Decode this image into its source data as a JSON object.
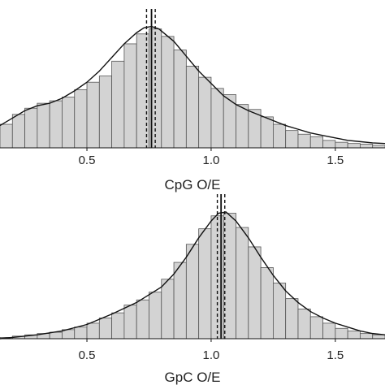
{
  "colors": {
    "bar_fill": "#d3d3d3",
    "bar_stroke": "#555555",
    "density": "#111111",
    "axis": "#111111"
  },
  "chart_data": [
    {
      "type": "bar",
      "xlabel": "CpG O/E",
      "ylabel": "",
      "xlim": [
        0.15,
        1.7
      ],
      "ylim": [
        0,
        1.03
      ],
      "x_ticks": [
        0.5,
        1.0,
        1.5
      ],
      "x_tick_labels": [
        "0.5",
        "1.0",
        "1.5"
      ],
      "bin_width": 0.05,
      "bins": [
        {
          "x": 0.175,
          "y": 0.19
        },
        {
          "x": 0.225,
          "y": 0.27
        },
        {
          "x": 0.275,
          "y": 0.32
        },
        {
          "x": 0.325,
          "y": 0.36
        },
        {
          "x": 0.375,
          "y": 0.38
        },
        {
          "x": 0.425,
          "y": 0.41
        },
        {
          "x": 0.475,
          "y": 0.47
        },
        {
          "x": 0.525,
          "y": 0.53
        },
        {
          "x": 0.575,
          "y": 0.58
        },
        {
          "x": 0.625,
          "y": 0.7
        },
        {
          "x": 0.675,
          "y": 0.84
        },
        {
          "x": 0.725,
          "y": 0.92
        },
        {
          "x": 0.775,
          "y": 0.96
        },
        {
          "x": 0.825,
          "y": 0.9
        },
        {
          "x": 0.875,
          "y": 0.79
        },
        {
          "x": 0.925,
          "y": 0.66
        },
        {
          "x": 0.975,
          "y": 0.57
        },
        {
          "x": 1.025,
          "y": 0.48
        },
        {
          "x": 1.075,
          "y": 0.43
        },
        {
          "x": 1.125,
          "y": 0.35
        },
        {
          "x": 1.175,
          "y": 0.31
        },
        {
          "x": 1.225,
          "y": 0.25
        },
        {
          "x": 1.275,
          "y": 0.19
        },
        {
          "x": 1.325,
          "y": 0.14
        },
        {
          "x": 1.375,
          "y": 0.11
        },
        {
          "x": 1.425,
          "y": 0.09
        },
        {
          "x": 1.475,
          "y": 0.06
        },
        {
          "x": 1.525,
          "y": 0.045
        },
        {
          "x": 1.575,
          "y": 0.035
        },
        {
          "x": 1.625,
          "y": 0.03
        },
        {
          "x": 1.675,
          "y": 0.02
        }
      ],
      "density_line": {
        "x": [
          0.15,
          0.2,
          0.25,
          0.3,
          0.35,
          0.4,
          0.45,
          0.5,
          0.55,
          0.6,
          0.65,
          0.7,
          0.73,
          0.76,
          0.79,
          0.85,
          0.9,
          0.95,
          1.0,
          1.05,
          1.1,
          1.15,
          1.2,
          1.25,
          1.3,
          1.35,
          1.4,
          1.45,
          1.5,
          1.55,
          1.6,
          1.65,
          1.7
        ],
        "y": [
          0.18,
          0.24,
          0.3,
          0.34,
          0.36,
          0.4,
          0.46,
          0.53,
          0.62,
          0.73,
          0.84,
          0.93,
          0.97,
          0.98,
          0.96,
          0.86,
          0.74,
          0.62,
          0.52,
          0.42,
          0.35,
          0.3,
          0.26,
          0.22,
          0.18,
          0.15,
          0.12,
          0.1,
          0.08,
          0.06,
          0.05,
          0.04,
          0.035
        ]
      },
      "vlines": [
        {
          "x": 0.74,
          "style": "dashed"
        },
        {
          "x": 0.76,
          "style": "solid"
        },
        {
          "x": 0.775,
          "style": "dashed"
        }
      ]
    },
    {
      "type": "bar",
      "xlabel": "GpC O/E",
      "ylabel": "",
      "xlim": [
        0.15,
        1.7
      ],
      "ylim": [
        0,
        1.03
      ],
      "x_ticks": [
        0.5,
        1.0,
        1.5
      ],
      "x_tick_labels": [
        "0.5",
        "1.0",
        "1.5"
      ],
      "bin_width": 0.05,
      "bins": [
        {
          "x": 0.175,
          "y": 0.01
        },
        {
          "x": 0.225,
          "y": 0.02
        },
        {
          "x": 0.275,
          "y": 0.03
        },
        {
          "x": 0.325,
          "y": 0.04
        },
        {
          "x": 0.375,
          "y": 0.05
        },
        {
          "x": 0.425,
          "y": 0.07
        },
        {
          "x": 0.475,
          "y": 0.09
        },
        {
          "x": 0.525,
          "y": 0.12
        },
        {
          "x": 0.575,
          "y": 0.16
        },
        {
          "x": 0.625,
          "y": 0.2
        },
        {
          "x": 0.675,
          "y": 0.26
        },
        {
          "x": 0.725,
          "y": 0.3
        },
        {
          "x": 0.775,
          "y": 0.36
        },
        {
          "x": 0.825,
          "y": 0.46
        },
        {
          "x": 0.875,
          "y": 0.59
        },
        {
          "x": 0.925,
          "y": 0.73
        },
        {
          "x": 0.975,
          "y": 0.85
        },
        {
          "x": 1.025,
          "y": 0.95
        },
        {
          "x": 1.075,
          "y": 0.97
        },
        {
          "x": 1.125,
          "y": 0.86
        },
        {
          "x": 1.175,
          "y": 0.71
        },
        {
          "x": 1.225,
          "y": 0.55
        },
        {
          "x": 1.275,
          "y": 0.43
        },
        {
          "x": 1.325,
          "y": 0.31
        },
        {
          "x": 1.375,
          "y": 0.23
        },
        {
          "x": 1.425,
          "y": 0.17
        },
        {
          "x": 1.475,
          "y": 0.12
        },
        {
          "x": 1.525,
          "y": 0.08
        },
        {
          "x": 1.575,
          "y": 0.06
        },
        {
          "x": 1.625,
          "y": 0.04
        },
        {
          "x": 1.675,
          "y": 0.03
        }
      ],
      "density_line": {
        "x": [
          0.15,
          0.2,
          0.3,
          0.4,
          0.5,
          0.6,
          0.7,
          0.8,
          0.85,
          0.9,
          0.95,
          1.0,
          1.03,
          1.06,
          1.1,
          1.15,
          1.2,
          1.25,
          1.3,
          1.35,
          1.4,
          1.45,
          1.5,
          1.55,
          1.6,
          1.65,
          1.7
        ],
        "y": [
          0.0,
          0.01,
          0.03,
          0.06,
          0.11,
          0.19,
          0.28,
          0.4,
          0.5,
          0.63,
          0.78,
          0.91,
          0.97,
          0.98,
          0.91,
          0.78,
          0.63,
          0.49,
          0.37,
          0.28,
          0.21,
          0.16,
          0.12,
          0.09,
          0.06,
          0.04,
          0.03
        ]
      },
      "vlines": [
        {
          "x": 1.025,
          "style": "dashed"
        },
        {
          "x": 1.04,
          "style": "solid"
        },
        {
          "x": 1.055,
          "style": "dashed"
        }
      ]
    }
  ]
}
